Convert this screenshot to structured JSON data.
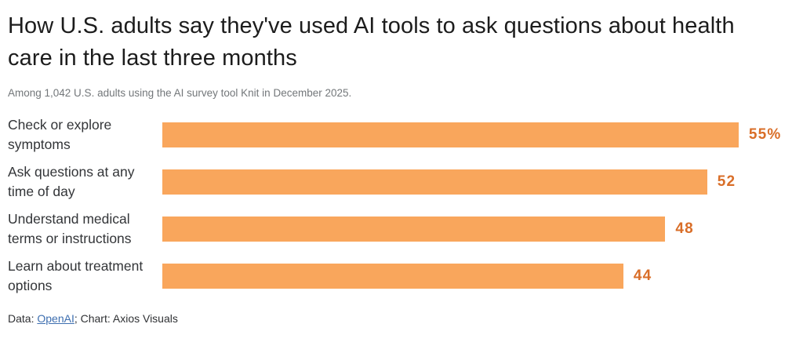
{
  "header": {
    "title": "How U.S. adults say they've used AI tools to ask questions about health care in the last three months",
    "subtitle": "Among 1,042 U.S. adults using the AI survey tool Knit in December 2025."
  },
  "chart_data": {
    "type": "bar",
    "orientation": "horizontal",
    "title": "How U.S. adults say they've used AI tools to ask questions about health care in the last three months",
    "subtitle": "Among 1,042 U.S. adults using the AI survey tool Knit in December 2025.",
    "categories": [
      "Check or explore symptoms",
      "Ask questions at any time of day",
      "Understand medical terms or instructions",
      "Learn about treatment options"
    ],
    "values": [
      55,
      52,
      48,
      44
    ],
    "value_labels": [
      "55%",
      "52",
      "48",
      "44"
    ],
    "unit": "percent",
    "xlabel": "",
    "ylabel": "",
    "xlim": [
      0,
      60
    ],
    "grid": false,
    "legend": false,
    "bar_color": "#f9a65c",
    "value_label_color": "#d96e28"
  },
  "footer": {
    "prefix": "Data: ",
    "source_link": "OpenAI",
    "separator": "; ",
    "credit": "Chart: Axios Visuals",
    "link_color": "#3e6fb0"
  }
}
